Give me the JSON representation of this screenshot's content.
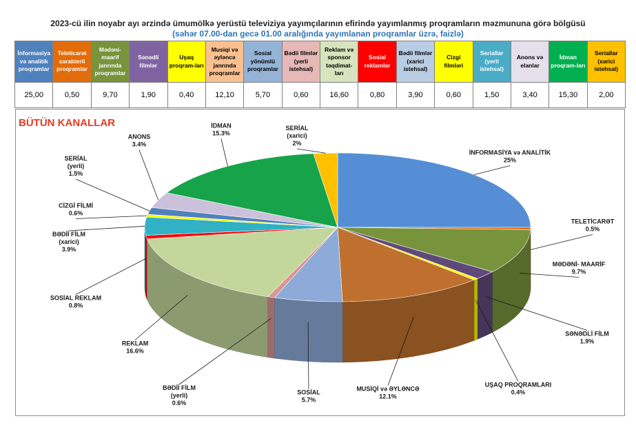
{
  "title": "2023-cü ilin noyabr ayı ərzində ümumölkə yerüstü televiziya yayımçılarının efirində yayımlanmış proqramların məzmununa görə bölgüsü",
  "subtitle": "(səhər 07.00-dan gecə 01.00 aralığında yayımlanan proqramlar üzrə, faizlə)",
  "table": {
    "headers": [
      {
        "label": "İnformasiya və analitik proqramlar",
        "bg": "#4f81bd",
        "fg": "#ffffff"
      },
      {
        "label": "Teleticarət xarakterli proqramlar",
        "bg": "#e36c0a",
        "fg": "#ffffff"
      },
      {
        "label": "Mədəni-maarif janrında proqramlar",
        "bg": "#77933c",
        "fg": "#ffffff"
      },
      {
        "label": "Sənədli filmlər",
        "bg": "#8064a2",
        "fg": "#ffffff"
      },
      {
        "label": "Uşaq proqram-ları",
        "bg": "#ffff00",
        "fg": "#000000"
      },
      {
        "label": "Musiqi və əyləncə janrında proqramlar",
        "bg": "#fac090",
        "fg": "#000000"
      },
      {
        "label": "Sosial yönümlü proqramlar",
        "bg": "#95b3d7",
        "fg": "#000000"
      },
      {
        "label": "Bədii filmlər (yerli istehsal)",
        "bg": "#e6b8b7",
        "fg": "#000000"
      },
      {
        "label": "Reklam və sponsor təqdimat-ları",
        "bg": "#d7e4bd",
        "fg": "#000000"
      },
      {
        "label": "Sosial reklamlar",
        "bg": "#ff0000",
        "fg": "#ffffff"
      },
      {
        "label": "Bədii filmlər (xarici istehsal)",
        "bg": "#b9cde5",
        "fg": "#000000"
      },
      {
        "label": "Cizgi filmləri",
        "bg": "#ffff00",
        "fg": "#000000"
      },
      {
        "label": "Seriallar (yerli istehsal)",
        "bg": "#4bacc6",
        "fg": "#ffffff"
      },
      {
        "label": "Anons və elanlar",
        "bg": "#e6e0ec",
        "fg": "#000000"
      },
      {
        "label": "İdman proqram-ları",
        "bg": "#00b050",
        "fg": "#ffffff"
      },
      {
        "label": "Seriallar (xarici istehsal)",
        "bg": "#ffc000",
        "fg": "#000000"
      }
    ],
    "values": [
      "25,00",
      "0,50",
      "9,70",
      "1,90",
      "0,40",
      "12,10",
      "5,70",
      "0,60",
      "16,60",
      "0,80",
      "3,90",
      "0,60",
      "1,50",
      "3,40",
      "15,30",
      "2,00"
    ]
  },
  "chart_data": {
    "type": "pie",
    "title": "BÜTÜN KANALLAR",
    "series": [
      {
        "label": "İNFORMASİYA və ANALİTİK",
        "value": 25.0,
        "pct": "25%",
        "color": "#558ed5"
      },
      {
        "label": "TELETİCARƏT",
        "value": 0.5,
        "pct": "0.5%",
        "color": "#e46c0a"
      },
      {
        "label": "MƏDƏNİ- MAARİF",
        "value": 9.7,
        "pct": "9.7%",
        "color": "#77933c"
      },
      {
        "label": "SƏNƏDLİ FİLM",
        "value": 1.9,
        "pct": "1.9%",
        "color": "#60497a"
      },
      {
        "label": "UŞAQ PROQRAMLARI",
        "value": 0.4,
        "pct": "0.4%",
        "color": "#ffff00"
      },
      {
        "label": "MUSİQİ və ƏYLƏNCƏ",
        "value": 12.1,
        "pct": "12.1%",
        "color": "#c0702e"
      },
      {
        "label": "SOSİAL",
        "value": 5.7,
        "pct": "5.7%",
        "color": "#8eaad8"
      },
      {
        "label": "BƏDİİ FİLM (yerli)",
        "value": 0.6,
        "pct": "0.6%",
        "color": "#d99694"
      },
      {
        "label": "REKLAM",
        "value": 16.6,
        "pct": "16.6%",
        "color": "#c3d69b"
      },
      {
        "label": "SOSİAL REKLAM",
        "value": 0.8,
        "pct": "0.8%",
        "color": "#ff0000"
      },
      {
        "label": "BƏDİİ FİLM (xarici)",
        "value": 3.9,
        "pct": "3.9%",
        "color": "#31b0c6"
      },
      {
        "label": "CİZGİ FİLMİ",
        "value": 0.6,
        "pct": "0.6%",
        "color": "#ffff00"
      },
      {
        "label": "SERİAL (yerli)",
        "value": 1.5,
        "pct": "1.5%",
        "color": "#4f81bd"
      },
      {
        "label": "ANONS",
        "value": 3.4,
        "pct": "3.4%",
        "color": "#ccc1da"
      },
      {
        "label": "İDMAN",
        "value": 15.3,
        "pct": "15.3%",
        "color": "#16a34a"
      },
      {
        "label": "SERİAL (xarici)",
        "value": 2.0,
        "pct": "2%",
        "color": "#ffc000"
      }
    ]
  }
}
